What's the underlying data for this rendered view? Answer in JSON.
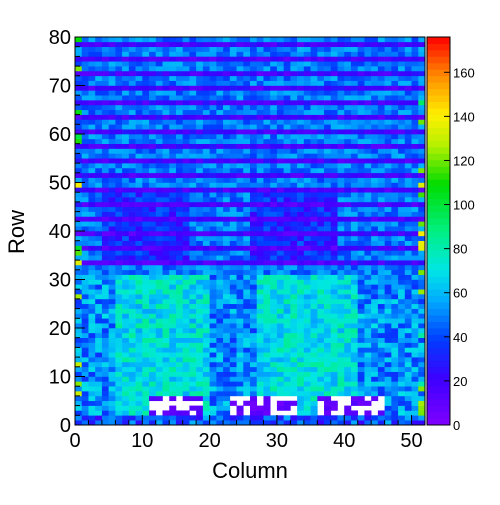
{
  "chart_data": {
    "type": "heatmap",
    "title": "",
    "xlabel": "Column",
    "ylabel": "Row",
    "xlim": [
      0,
      52
    ],
    "ylim": [
      0,
      80
    ],
    "x_ticks": [
      "0",
      "10",
      "20",
      "30",
      "40",
      "50"
    ],
    "y_ticks": [
      "0",
      "10",
      "20",
      "30",
      "40",
      "50",
      "60",
      "70",
      "80"
    ],
    "colorbar": {
      "min": 0,
      "max": 176,
      "ticks": [
        "0",
        "20",
        "40",
        "60",
        "80",
        "100",
        "120",
        "140",
        "160"
      ]
    },
    "n_columns": 52,
    "n_rows": 80,
    "row_level_description": "rows 0-30 mostly 40-80 with cyan/green blocks around columns 6-19 and 27-41; rows 31-80 alternating stripes ~10-25 (dark blue/purple) and ~40-55 (light blue); rows 2-5 columns 11-18, 23-32, 36-45 contain empty (white) cells",
    "empty_regions": [
      {
        "col_start": 11,
        "col_end": 18,
        "row_start": 2,
        "row_end": 5
      },
      {
        "col_start": 23,
        "col_end": 32,
        "row_start": 2,
        "row_end": 5
      },
      {
        "col_start": 36,
        "col_end": 45,
        "row_start": 2,
        "row_end": 5
      }
    ],
    "colormap": "rainbow (purple-blue-cyan-green-yellow-red)"
  }
}
